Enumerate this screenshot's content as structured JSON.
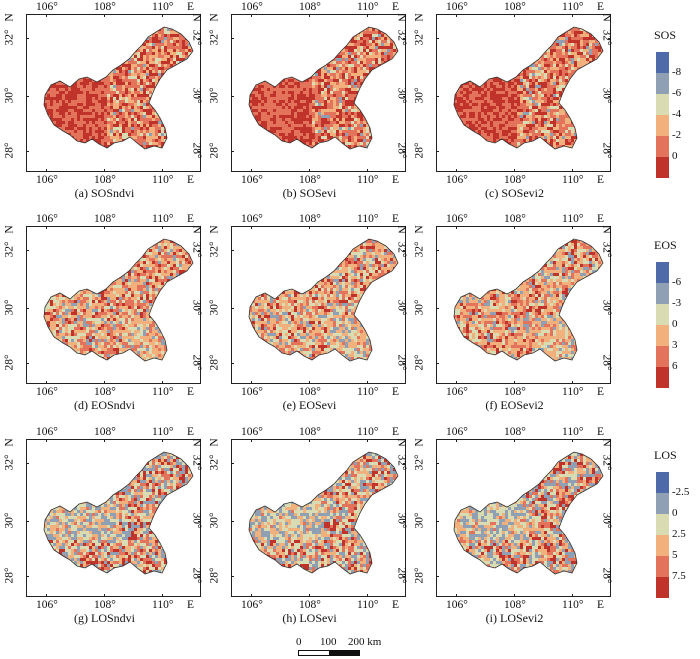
{
  "map": {
    "x_ticks": [
      "106°",
      "108°",
      "110°"
    ],
    "lon_unit": "E",
    "y_ticks": [
      "28°",
      "30°",
      "32°"
    ],
    "lat_unit": "N"
  },
  "panels": [
    {
      "caption": "(a) SOSndvi",
      "variable": "SOS"
    },
    {
      "caption": "(b) SOSevi",
      "variable": "SOS"
    },
    {
      "caption": "(c) SOSevi2",
      "variable": "SOS"
    },
    {
      "caption": "(d) EOSndvi",
      "variable": "EOS"
    },
    {
      "caption": "(e) EOSevi",
      "variable": "EOS"
    },
    {
      "caption": "(f) EOSevi2",
      "variable": "EOS"
    },
    {
      "caption": "(g) LOSndvi",
      "variable": "LOS"
    },
    {
      "caption": "(h) LOSevi",
      "variable": "LOS"
    },
    {
      "caption": "(i) LOSevi2",
      "variable": "LOS"
    }
  ],
  "legends": [
    {
      "title": "SOS",
      "labels": [
        "-8",
        "-6",
        "-4",
        "-2",
        "0"
      ],
      "colors": [
        "#4f6aa8",
        "#8fa0b4",
        "#d9dcb2",
        "#f2b07d",
        "#e3735a",
        "#c0332a"
      ]
    },
    {
      "title": "EOS",
      "labels": [
        "-6",
        "-3",
        "0",
        "3",
        "6"
      ],
      "colors": [
        "#4f6aa8",
        "#8fa0b4",
        "#d9dcb2",
        "#f2b07d",
        "#e3735a",
        "#c0332a"
      ]
    },
    {
      "title": "LOS",
      "labels": [
        "-2.5",
        "0",
        "2.5",
        "5",
        "7.5"
      ],
      "colors": [
        "#4f6aa8",
        "#8fa0b4",
        "#d9dcb2",
        "#f2b07d",
        "#e3735a",
        "#c0332a"
      ]
    }
  ],
  "scale_bar": {
    "labels": [
      "0",
      "100",
      "200 km"
    ]
  }
}
